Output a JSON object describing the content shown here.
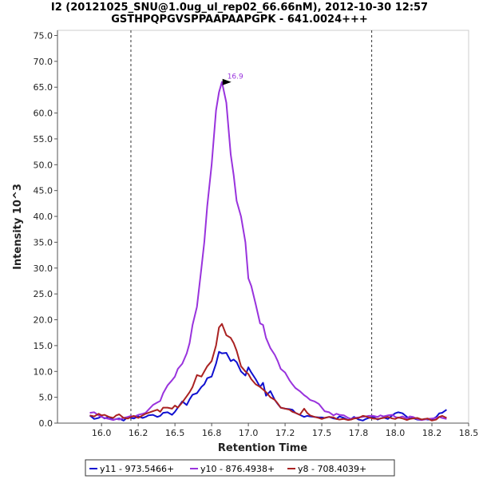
{
  "chart_data": {
    "type": "line",
    "title": "I2 (20121025_SNU@1.0ug_ul_rep02_66.66nM), 2012-10-30 12:57",
    "subtitle": "GSTHPQPGVSPPAAPAAPGPK - 641.0024+++",
    "xlabel": "Retention Time",
    "ylabel": "Intensity 10^3",
    "xlim": [
      15.7,
      18.5
    ],
    "ylim": [
      0,
      76
    ],
    "xticks": [
      "16.0",
      "16.2",
      "16.5",
      "16.8",
      "17.0",
      "17.2",
      "17.5",
      "17.8",
      "18.0",
      "18.2",
      "18.5"
    ],
    "xtick_values": [
      16.0,
      16.25,
      16.5,
      16.75,
      17.0,
      17.25,
      17.5,
      17.75,
      18.0,
      18.25,
      18.5
    ],
    "yticks": [
      "0.0",
      "5.0",
      "10.0",
      "15.0",
      "20.0",
      "25.0",
      "30.0",
      "35.0",
      "40.0",
      "45.0",
      "50.0",
      "55.0",
      "60.0",
      "65.0",
      "70.0",
      "75.0"
    ],
    "ytick_values": [
      0,
      5,
      10,
      15,
      20,
      25,
      30,
      35,
      40,
      45,
      50,
      55,
      60,
      65,
      70,
      75
    ],
    "integration_bounds": [
      16.2,
      17.84
    ],
    "peak_annotation": {
      "label": "16.9",
      "x": 16.9,
      "y": 66
    },
    "series": [
      {
        "name": "y11 - 973.5466+",
        "color": "#1010d0",
        "x": [
          15.92,
          15.95,
          15.98,
          16.0,
          16.02,
          16.05,
          16.08,
          16.1,
          16.12,
          16.15,
          16.18,
          16.2,
          16.22,
          16.25,
          16.28,
          16.3,
          16.32,
          16.35,
          16.38,
          16.4,
          16.42,
          16.45,
          16.48,
          16.5,
          16.52,
          16.55,
          16.58,
          16.6,
          16.62,
          16.65,
          16.68,
          16.7,
          16.72,
          16.75,
          16.78,
          16.8,
          16.82,
          16.85,
          16.88,
          16.9,
          16.92,
          16.95,
          16.98,
          17.0,
          17.02,
          17.05,
          17.08,
          17.1,
          17.12,
          17.15,
          17.18,
          17.2,
          17.22,
          17.25,
          17.28,
          17.3,
          17.32,
          17.35,
          17.38,
          17.4,
          17.42,
          17.45,
          17.48,
          17.5,
          17.52,
          17.55,
          17.58,
          17.6,
          17.62,
          17.65,
          17.68,
          17.7,
          17.72,
          17.75,
          17.78,
          17.8,
          17.82,
          17.85,
          17.88,
          17.9,
          17.92,
          17.95,
          17.98,
          18.0,
          18.02,
          18.05,
          18.08,
          18.1,
          18.12,
          18.15,
          18.18,
          18.2,
          18.22,
          18.25,
          18.28,
          18.3,
          18.32,
          18.35
        ],
        "values": [
          1.5,
          0.8,
          1.0,
          1.3,
          0.9,
          1.2,
          0.6,
          0.8,
          0.9,
          0.5,
          1.2,
          1.0,
          0.9,
          1.3,
          1.0,
          1.2,
          1.5,
          1.6,
          1.2,
          1.4,
          2.0,
          2.1,
          1.6,
          2.2,
          3.0,
          4.2,
          3.5,
          4.6,
          5.5,
          5.8,
          7.0,
          7.5,
          8.7,
          9.0,
          11.5,
          13.8,
          13.5,
          13.6,
          12.0,
          12.3,
          11.8,
          10.0,
          9.2,
          10.8,
          9.8,
          8.5,
          7.0,
          7.8,
          5.3,
          6.2,
          4.5,
          3.7,
          3.0,
          2.8,
          2.7,
          2.6,
          2.0,
          1.6,
          1.2,
          1.4,
          1.3,
          1.2,
          1.1,
          1.1,
          1.0,
          1.2,
          0.9,
          0.8,
          1.3,
          1.0,
          0.6,
          0.8,
          1.2,
          0.7,
          0.5,
          0.8,
          1.0,
          1.2,
          0.7,
          0.9,
          1.1,
          0.8,
          1.5,
          1.9,
          2.1,
          1.9,
          1.2,
          0.9,
          1.0,
          0.7,
          0.6,
          0.8,
          0.7,
          0.7,
          1.2,
          1.9,
          2.0,
          2.6
        ]
      },
      {
        "name": "y10 - 876.4938+",
        "color": "#9933dd",
        "x": [
          15.92,
          15.95,
          15.98,
          16.0,
          16.02,
          16.05,
          16.08,
          16.1,
          16.12,
          16.15,
          16.18,
          16.2,
          16.22,
          16.25,
          16.28,
          16.3,
          16.32,
          16.35,
          16.38,
          16.4,
          16.42,
          16.45,
          16.48,
          16.5,
          16.52,
          16.55,
          16.58,
          16.6,
          16.62,
          16.65,
          16.68,
          16.7,
          16.72,
          16.75,
          16.78,
          16.8,
          16.82,
          16.85,
          16.88,
          16.9,
          16.92,
          16.95,
          16.98,
          17.0,
          17.02,
          17.05,
          17.08,
          17.1,
          17.12,
          17.15,
          17.18,
          17.2,
          17.22,
          17.25,
          17.28,
          17.3,
          17.32,
          17.35,
          17.38,
          17.4,
          17.42,
          17.45,
          17.48,
          17.5,
          17.52,
          17.55,
          17.58,
          17.6,
          17.62,
          17.65,
          17.68,
          17.7,
          17.72,
          17.75,
          17.78,
          17.8,
          17.82,
          17.85,
          17.88,
          17.9,
          17.92,
          17.95,
          17.98,
          18.0,
          18.02,
          18.05,
          18.08,
          18.1,
          18.12,
          18.15,
          18.18,
          18.2,
          18.22,
          18.25,
          18.28,
          18.3,
          18.32,
          18.35
        ],
        "values": [
          2.0,
          2.1,
          1.5,
          1.2,
          1.0,
          0.8,
          0.6,
          0.8,
          0.7,
          1.0,
          1.2,
          1.4,
          1.2,
          1.6,
          1.8,
          2.0,
          2.6,
          3.5,
          4.0,
          4.3,
          5.8,
          7.3,
          8.3,
          9.0,
          10.5,
          11.5,
          13.5,
          15.5,
          19.0,
          22.5,
          30.0,
          35.0,
          42.0,
          50.0,
          60.5,
          64.0,
          66.0,
          62.0,
          52.0,
          48.0,
          43.0,
          40.0,
          35.0,
          28.0,
          26.5,
          23.0,
          19.3,
          19.0,
          16.5,
          14.5,
          13.2,
          12.0,
          10.5,
          9.8,
          8.3,
          7.5,
          6.8,
          6.2,
          5.4,
          5.0,
          4.5,
          4.2,
          3.7,
          3.0,
          2.3,
          2.1,
          1.5,
          1.8,
          1.6,
          1.5,
          1.0,
          0.8,
          1.0,
          1.1,
          1.2,
          1.3,
          1.4,
          1.4,
          1.2,
          1.5,
          1.3,
          1.5,
          1.6,
          1.2,
          1.0,
          1.3,
          0.9,
          1.3,
          1.2,
          0.8,
          0.6,
          0.7,
          0.8,
          0.9,
          1.0,
          1.2,
          1.0,
          0.8
        ]
      },
      {
        "name": "y8 - 708.4039+",
        "color": "#aa2222",
        "x": [
          15.92,
          15.95,
          15.98,
          16.0,
          16.02,
          16.05,
          16.08,
          16.1,
          16.12,
          16.15,
          16.18,
          16.2,
          16.22,
          16.25,
          16.28,
          16.3,
          16.32,
          16.35,
          16.38,
          16.4,
          16.42,
          16.45,
          16.48,
          16.5,
          16.52,
          16.55,
          16.58,
          16.6,
          16.62,
          16.65,
          16.68,
          16.7,
          16.72,
          16.75,
          16.78,
          16.8,
          16.82,
          16.85,
          16.88,
          16.9,
          16.92,
          16.95,
          16.98,
          17.0,
          17.02,
          17.05,
          17.08,
          17.1,
          17.12,
          17.15,
          17.18,
          17.2,
          17.22,
          17.25,
          17.28,
          17.3,
          17.32,
          17.35,
          17.38,
          17.4,
          17.42,
          17.45,
          17.48,
          17.5,
          17.52,
          17.55,
          17.58,
          17.6,
          17.62,
          17.65,
          17.68,
          17.7,
          17.72,
          17.75,
          17.78,
          17.8,
          17.82,
          17.85,
          17.88,
          17.9,
          17.92,
          17.95,
          17.98,
          18.0,
          18.02,
          18.05,
          18.08,
          18.1,
          18.12,
          18.15,
          18.18,
          18.2,
          18.22,
          18.25,
          18.28,
          18.3,
          18.32,
          18.35
        ],
        "values": [
          1.5,
          1.3,
          1.8,
          1.5,
          1.6,
          1.2,
          1.0,
          1.5,
          1.7,
          1.0,
          0.9,
          1.2,
          1.4,
          1.0,
          1.5,
          1.8,
          2.0,
          2.3,
          2.6,
          2.2,
          3.0,
          3.0,
          2.8,
          3.4,
          3.0,
          4.0,
          5.2,
          6.0,
          7.0,
          9.3,
          9.0,
          10.0,
          11.0,
          12.0,
          15.0,
          18.5,
          19.2,
          17.0,
          16.5,
          15.5,
          14.0,
          11.0,
          10.0,
          9.5,
          8.5,
          7.5,
          7.0,
          6.5,
          6.0,
          5.0,
          4.5,
          3.8,
          3.0,
          2.8,
          2.6,
          2.2,
          2.0,
          1.6,
          2.8,
          2.0,
          1.5,
          1.2,
          1.0,
          0.8,
          1.0,
          1.2,
          1.1,
          0.8,
          0.7,
          0.8,
          0.6,
          0.7,
          0.9,
          1.0,
          1.4,
          1.3,
          1.1,
          0.9,
          0.8,
          0.9,
          1.0,
          1.2,
          0.9,
          0.8,
          1.1,
          0.9,
          0.6,
          0.8,
          0.9,
          1.0,
          0.7,
          0.8,
          0.9,
          0.5,
          0.7,
          1.2,
          1.4,
          1.0
        ]
      }
    ]
  }
}
